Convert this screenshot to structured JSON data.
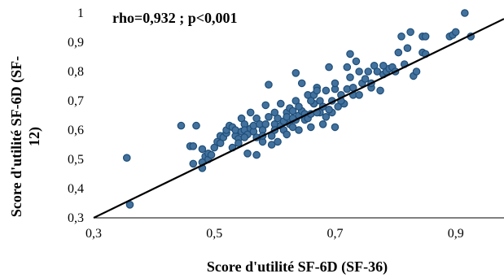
{
  "chart_data": {
    "type": "scatter",
    "title": "",
    "annotation": "rho=0,932 ; p<0,001",
    "xlabel": "Score d'utilité SF-6D (SF-36)",
    "ylabel_line1": "Score d'utilité SF-6D (SF-",
    "ylabel_line2": "12)",
    "xlim": [
      0.3,
      0.98
    ],
    "ylim": [
      0.3,
      1.0
    ],
    "xticks": [
      0.3,
      0.5,
      0.7,
      0.9
    ],
    "xtick_labels": [
      "0,3",
      "0,5",
      "0,7",
      "0,9"
    ],
    "yticks": [
      0.3,
      0.4,
      0.5,
      0.6,
      0.7,
      0.8,
      0.9,
      1.0
    ],
    "ytick_labels": [
      "0,3",
      "0,4",
      "0,5",
      "0,6",
      "0,7",
      "0,8",
      "0,9",
      "1"
    ],
    "grid": false,
    "marker_color": "#41719C",
    "marker_edge": "#1F4E79",
    "line_color": "#000000",
    "reference_line": {
      "x": [
        0.3,
        0.98
      ],
      "y": [
        0.3,
        0.98
      ]
    },
    "points": [
      [
        0.355,
        0.505
      ],
      [
        0.36,
        0.345
      ],
      [
        0.445,
        0.615
      ],
      [
        0.46,
        0.545
      ],
      [
        0.465,
        0.545
      ],
      [
        0.47,
        0.615
      ],
      [
        0.465,
        0.485
      ],
      [
        0.48,
        0.47
      ],
      [
        0.48,
        0.49
      ],
      [
        0.485,
        0.51
      ],
      [
        0.48,
        0.535
      ],
      [
        0.49,
        0.5
      ],
      [
        0.49,
        0.52
      ],
      [
        0.495,
        0.515
      ],
      [
        0.5,
        0.54
      ],
      [
        0.505,
        0.56
      ],
      [
        0.51,
        0.555
      ],
      [
        0.51,
        0.58
      ],
      [
        0.515,
        0.575
      ],
      [
        0.52,
        0.59
      ],
      [
        0.52,
        0.6
      ],
      [
        0.525,
        0.615
      ],
      [
        0.53,
        0.54
      ],
      [
        0.53,
        0.61
      ],
      [
        0.535,
        0.58
      ],
      [
        0.535,
        0.6
      ],
      [
        0.54,
        0.57
      ],
      [
        0.54,
        0.555
      ],
      [
        0.545,
        0.64
      ],
      [
        0.545,
        0.595
      ],
      [
        0.55,
        0.62
      ],
      [
        0.55,
        0.6
      ],
      [
        0.555,
        0.585
      ],
      [
        0.555,
        0.52
      ],
      [
        0.56,
        0.66
      ],
      [
        0.56,
        0.605
      ],
      [
        0.565,
        0.595
      ],
      [
        0.565,
        0.615
      ],
      [
        0.57,
        0.575
      ],
      [
        0.57,
        0.64
      ],
      [
        0.57,
        0.515
      ],
      [
        0.575,
        0.62
      ],
      [
        0.58,
        0.56
      ],
      [
        0.58,
        0.6
      ],
      [
        0.585,
        0.685
      ],
      [
        0.585,
        0.62
      ],
      [
        0.59,
        0.645
      ],
      [
        0.59,
        0.755
      ],
      [
        0.595,
        0.58
      ],
      [
        0.595,
        0.55
      ],
      [
        0.6,
        0.62
      ],
      [
        0.6,
        0.6
      ],
      [
        0.605,
        0.56
      ],
      [
        0.605,
        0.64
      ],
      [
        0.61,
        0.69
      ],
      [
        0.61,
        0.615
      ],
      [
        0.615,
        0.63
      ],
      [
        0.615,
        0.6
      ],
      [
        0.62,
        0.66
      ],
      [
        0.62,
        0.645
      ],
      [
        0.625,
        0.675
      ],
      [
        0.625,
        0.62
      ],
      [
        0.63,
        0.61
      ],
      [
        0.63,
        0.665
      ],
      [
        0.635,
        0.7
      ],
      [
        0.635,
        0.635
      ],
      [
        0.635,
        0.795
      ],
      [
        0.64,
        0.65
      ],
      [
        0.64,
        0.6
      ],
      [
        0.645,
        0.665
      ],
      [
        0.645,
        0.76
      ],
      [
        0.65,
        0.655
      ],
      [
        0.65,
        0.635
      ],
      [
        0.655,
        0.72
      ],
      [
        0.655,
        0.64
      ],
      [
        0.66,
        0.655
      ],
      [
        0.66,
        0.61
      ],
      [
        0.665,
        0.69
      ],
      [
        0.665,
        0.72
      ],
      [
        0.67,
        0.745
      ],
      [
        0.67,
        0.735
      ],
      [
        0.675,
        0.7
      ],
      [
        0.675,
        0.66
      ],
      [
        0.68,
        0.68
      ],
      [
        0.685,
        0.645
      ],
      [
        0.685,
        0.735
      ],
      [
        0.69,
        0.815
      ],
      [
        0.695,
        0.66
      ],
      [
        0.695,
        0.7
      ],
      [
        0.7,
        0.74
      ],
      [
        0.7,
        0.76
      ],
      [
        0.705,
        0.68
      ],
      [
        0.71,
        0.72
      ],
      [
        0.715,
        0.69
      ],
      [
        0.72,
        0.74
      ],
      [
        0.72,
        0.815
      ],
      [
        0.725,
        0.86
      ],
      [
        0.725,
        0.78
      ],
      [
        0.73,
        0.72
      ],
      [
        0.735,
        0.835
      ],
      [
        0.74,
        0.8
      ],
      [
        0.745,
        0.76
      ],
      [
        0.75,
        0.775
      ],
      [
        0.755,
        0.8
      ],
      [
        0.76,
        0.745
      ],
      [
        0.765,
        0.82
      ],
      [
        0.77,
        0.8
      ],
      [
        0.775,
        0.735
      ],
      [
        0.78,
        0.79
      ],
      [
        0.785,
        0.8
      ],
      [
        0.79,
        0.81
      ],
      [
        0.795,
        0.815
      ],
      [
        0.8,
        0.8
      ],
      [
        0.805,
        0.865
      ],
      [
        0.81,
        0.92
      ],
      [
        0.815,
        0.825
      ],
      [
        0.82,
        0.88
      ],
      [
        0.825,
        0.935
      ],
      [
        0.83,
        0.785
      ],
      [
        0.835,
        0.8
      ],
      [
        0.845,
        0.92
      ],
      [
        0.845,
        0.865
      ],
      [
        0.85,
        0.86
      ],
      [
        0.85,
        0.92
      ],
      [
        0.89,
        0.92
      ],
      [
        0.895,
        0.925
      ],
      [
        0.9,
        0.935
      ],
      [
        0.915,
        1.0
      ],
      [
        0.925,
        0.92
      ],
      [
        0.7,
        0.61
      ],
      [
        0.71,
        0.7
      ],
      [
        0.68,
        0.62
      ],
      [
        0.66,
        0.7
      ],
      [
        0.74,
        0.72
      ],
      [
        0.76,
        0.76
      ],
      [
        0.78,
        0.82
      ],
      [
        0.62,
        0.585
      ],
      [
        0.58,
        0.58
      ],
      [
        0.55,
        0.575
      ],
      [
        0.6,
        0.66
      ],
      [
        0.64,
        0.68
      ],
      [
        0.69,
        0.67
      ],
      [
        0.73,
        0.745
      ],
      [
        0.67,
        0.66
      ],
      [
        0.63,
        0.64
      ]
    ]
  }
}
